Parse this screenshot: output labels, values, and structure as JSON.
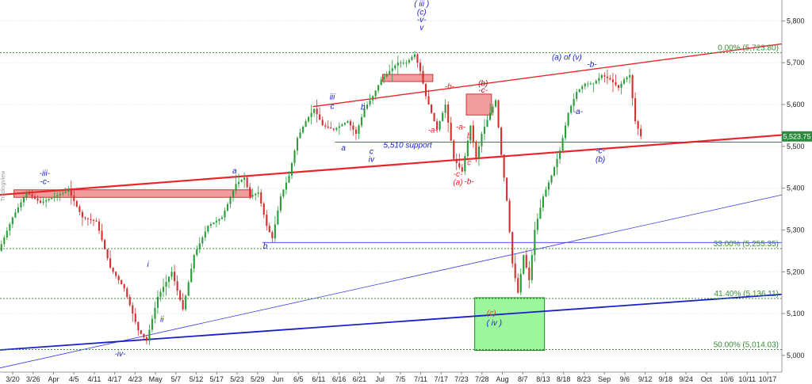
{
  "watermark": "TradingView",
  "chart_data": {
    "type": "candlestick",
    "title": "",
    "ylim": [
      4960,
      5850
    ],
    "y_ticks": [
      "5,000",
      "5,100",
      "5,200",
      "5,300",
      "5,400",
      "5,500",
      "5,600",
      "5,700",
      "5,800"
    ],
    "y_tick_values": [
      5000,
      5100,
      5200,
      5300,
      5400,
      5500,
      5600,
      5700,
      5800
    ],
    "x_ticks": [
      "3/20",
      "3/26",
      "Apr",
      "4/5",
      "4/11",
      "4/17",
      "4/23",
      "May",
      "5/7",
      "5/12",
      "5/17",
      "5/23",
      "5/29",
      "Jun",
      "6/5",
      "6/11",
      "6/16",
      "6/21",
      "Jul",
      "7/5",
      "7/11",
      "7/17",
      "7/23",
      "7/28",
      "Aug",
      "8/7",
      "8/13",
      "8/18",
      "8/23",
      "Sep",
      "9/6",
      "9/12",
      "9/18",
      "9/24",
      "Oct",
      "10/6",
      "10/11",
      "10/17"
    ],
    "price_label": "5,523.75",
    "last_price": 5523.75,
    "price_path": [
      [
        0,
        5250
      ],
      [
        5,
        5330
      ],
      [
        10,
        5390
      ],
      [
        15,
        5365
      ],
      [
        20,
        5380
      ],
      [
        25,
        5395
      ],
      [
        30,
        5330
      ],
      [
        35,
        5320
      ],
      [
        40,
        5210
      ],
      [
        45,
        5160
      ],
      [
        50,
        5060
      ],
      [
        53,
        5035
      ],
      [
        57,
        5140
      ],
      [
        62,
        5200
      ],
      [
        66,
        5110
      ],
      [
        70,
        5240
      ],
      [
        75,
        5310
      ],
      [
        80,
        5330
      ],
      [
        85,
        5410
      ],
      [
        88,
        5425
      ],
      [
        90,
        5380
      ],
      [
        93,
        5390
      ],
      [
        96,
        5310
      ],
      [
        98,
        5280
      ],
      [
        101,
        5380
      ],
      [
        104,
        5430
      ],
      [
        107,
        5520
      ],
      [
        110,
        5560
      ],
      [
        113,
        5590
      ],
      [
        116,
        5550
      ],
      [
        120,
        5540
      ],
      [
        125,
        5560
      ],
      [
        128,
        5530
      ],
      [
        131,
        5590
      ],
      [
        134,
        5620
      ],
      [
        137,
        5660
      ],
      [
        140,
        5680
      ],
      [
        143,
        5700
      ],
      [
        146,
        5700
      ],
      [
        149,
        5720
      ],
      [
        151,
        5680
      ],
      [
        153,
        5620
      ],
      [
        155,
        5580
      ],
      [
        157,
        5540
      ],
      [
        160,
        5600
      ],
      [
        163,
        5470
      ],
      [
        166,
        5440
      ],
      [
        169,
        5550
      ],
      [
        171,
        5470
      ],
      [
        173,
        5530
      ],
      [
        176,
        5580
      ],
      [
        178,
        5610
      ],
      [
        180,
        5480
      ],
      [
        182,
        5370
      ],
      [
        184,
        5220
      ],
      [
        186,
        5150
      ],
      [
        188,
        5240
      ],
      [
        190,
        5180
      ],
      [
        192,
        5300
      ],
      [
        195,
        5380
      ],
      [
        198,
        5430
      ],
      [
        201,
        5490
      ],
      [
        204,
        5580
      ],
      [
        207,
        5630
      ],
      [
        210,
        5650
      ],
      [
        213,
        5650
      ],
      [
        216,
        5670
      ],
      [
        219,
        5660
      ],
      [
        222,
        5640
      ],
      [
        224,
        5660
      ],
      [
        226,
        5670
      ],
      [
        228,
        5560
      ],
      [
        230,
        5524
      ]
    ],
    "x_max": 280,
    "lines": [
      {
        "name": "upper-channel-line",
        "color": "#e8262a",
        "width": 1.4,
        "points": [
          [
            112,
            5595
          ],
          [
            280,
            5745
          ]
        ]
      },
      {
        "name": "red-trendline",
        "color": "#e8262a",
        "width": 2.2,
        "points": [
          [
            0,
            5384
          ],
          [
            280,
            5527
          ]
        ]
      },
      {
        "name": "steep-blue-trendline",
        "color": "#3c3ce0",
        "width": 0.8,
        "points": [
          [
            0,
            4970
          ],
          [
            280,
            5384
          ]
        ]
      },
      {
        "name": "lower-blue-trendline",
        "color": "#1a20c8",
        "width": 1.8,
        "points": [
          [
            0,
            5013
          ],
          [
            280,
            5146
          ]
        ]
      },
      {
        "name": "support-5510-line",
        "color": "#3c3ce0",
        "width": 0.8,
        "points": [
          [
            120,
            5510
          ],
          [
            280,
            5510
          ]
        ]
      },
      {
        "name": "b-level-line",
        "color": "#3c3ce0",
        "width": 0.8,
        "points": [
          [
            94,
            5270
          ],
          [
            280,
            5270
          ]
        ]
      }
    ],
    "fib_levels": [
      {
        "label": "0.00% (5,723.80)",
        "value": 5723.8
      },
      {
        "label": "33.00% (5,255.35)",
        "value": 5255.35
      },
      {
        "label": "41.40% (5,136.11)",
        "value": 5136.11
      },
      {
        "label": "50.00% (5,014.03)",
        "value": 5014.03
      }
    ],
    "zones": [
      {
        "name": "resistance-zone-march",
        "x0": 5,
        "x1": 90,
        "y0": 5378,
        "y1": 5396,
        "fill": "#f08c8c",
        "stroke": "#d23030"
      },
      {
        "name": "resistance-zone-july",
        "x0": 137,
        "x1": 155,
        "y0": 5655,
        "y1": 5672,
        "fill": "#f08c8c",
        "stroke": "#d23030"
      },
      {
        "name": "resistance-zone-august",
        "x0": 167,
        "x1": 176,
        "y0": 5575,
        "y1": 5625,
        "fill": "#f08c8c",
        "stroke": "#d23030"
      },
      {
        "name": "support-zone-wave-iv",
        "x0": 170,
        "x1": 195,
        "y0": 5012,
        "y1": 5138,
        "fill": "#8cf58c",
        "stroke": "#228822"
      }
    ],
    "annotations": [
      {
        "text": "-iii-",
        "x": 16,
        "y": 5430,
        "color": "#1a20c8"
      },
      {
        "text": "-c-",
        "x": 16,
        "y": 5410,
        "color": "#1a20c8"
      },
      {
        "text": "a",
        "x": 84,
        "y": 5435,
        "color": "#1a20c8"
      },
      {
        "text": "b",
        "x": 95,
        "y": 5255,
        "color": "#1a20c8"
      },
      {
        "text": "i",
        "x": 53,
        "y": 5212,
        "color": "#1a20c8"
      },
      {
        "text": "ii",
        "x": 58,
        "y": 5080,
        "color": "#1a20c8"
      },
      {
        "text": "-iv-",
        "x": 43,
        "y": 4998,
        "color": "#1a20c8"
      },
      {
        "text": "iii",
        "x": 119,
        "y": 5612,
        "color": "#1a20c8"
      },
      {
        "text": "c",
        "x": 119,
        "y": 5590,
        "color": "#1a20c8"
      },
      {
        "text": "a",
        "x": 123,
        "y": 5490,
        "color": "#1a20c8"
      },
      {
        "text": "b",
        "x": 130,
        "y": 5588,
        "color": "#1a20c8"
      },
      {
        "text": "c",
        "x": 133,
        "y": 5482,
        "color": "#1a20c8"
      },
      {
        "text": "iv",
        "x": 133,
        "y": 5463,
        "color": "#1a20c8"
      },
      {
        "text": "5,510 support",
        "x": 146,
        "y": 5497,
        "color": "#1a20c8"
      },
      {
        "text": "( iii )",
        "x": 151,
        "y": 5835,
        "color": "#1a20c8"
      },
      {
        "text": "(c)",
        "x": 151,
        "y": 5815,
        "color": "#1a20c8"
      },
      {
        "text": "-v-",
        "x": 151,
        "y": 5797,
        "color": "#1a20c8"
      },
      {
        "text": "v",
        "x": 151,
        "y": 5778,
        "color": "#1a20c8"
      },
      {
        "text": "-b-",
        "x": 161,
        "y": 5637,
        "color": "#e8262a"
      },
      {
        "text": "-a-",
        "x": 155,
        "y": 5533,
        "color": "#e8262a"
      },
      {
        "text": "-a-",
        "x": 165,
        "y": 5540,
        "color": "#e8262a"
      },
      {
        "text": "b",
        "x": 168,
        "y": 5520,
        "color": "#e8262a"
      },
      {
        "text": "c",
        "x": 168,
        "y": 5455,
        "color": "#e8262a"
      },
      {
        "text": "-b-",
        "x": 168,
        "y": 5410,
        "color": "#e8262a"
      },
      {
        "text": "-c-",
        "x": 164,
        "y": 5428,
        "color": "#e8262a"
      },
      {
        "text": "(a)",
        "x": 164,
        "y": 5408,
        "color": "#e8262a"
      },
      {
        "text": "(b)",
        "x": 173,
        "y": 5645,
        "color": "#8b1e1e"
      },
      {
        "text": "-c-",
        "x": 173,
        "y": 5628,
        "color": "#8b1e1e"
      },
      {
        "text": "(c)",
        "x": 176,
        "y": 5095,
        "color": "#cc5500"
      },
      {
        "text": "( iv )",
        "x": 177,
        "y": 5072,
        "color": "#1a20c8"
      },
      {
        "text": "(a) of (v)",
        "x": 203,
        "y": 5707,
        "color": "#1a20c8"
      },
      {
        "text": "-b-",
        "x": 212,
        "y": 5690,
        "color": "#1a20c8"
      },
      {
        "text": "-a-",
        "x": 207,
        "y": 5577,
        "color": "#1a20c8"
      },
      {
        "text": "-c-",
        "x": 215,
        "y": 5484,
        "color": "#1a20c8"
      },
      {
        "text": "(b)",
        "x": 215,
        "y": 5463,
        "color": "#1a20c8"
      }
    ],
    "grid": "horizontal-dotted",
    "colors": {
      "up": "#2a9d3a",
      "down": "#d23030",
      "price_tag": "#2e8b3e",
      "fib": "#3a8a3a"
    }
  }
}
